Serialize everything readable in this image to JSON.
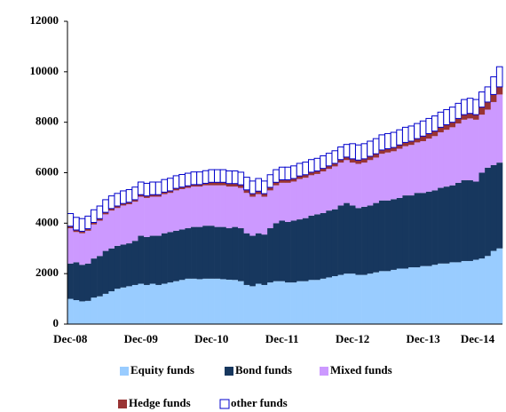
{
  "chart_data": {
    "type": "stacked_bar",
    "categories": [
      "Dec-08",
      null,
      null,
      null,
      null,
      null,
      null,
      null,
      null,
      null,
      null,
      null,
      "Dec-09",
      null,
      null,
      null,
      null,
      null,
      null,
      null,
      null,
      null,
      null,
      null,
      "Dec-10",
      null,
      null,
      null,
      null,
      null,
      null,
      null,
      null,
      null,
      null,
      null,
      "Dec-11",
      null,
      null,
      null,
      null,
      null,
      null,
      null,
      null,
      null,
      null,
      null,
      "Dec-12",
      null,
      null,
      null,
      null,
      null,
      null,
      null,
      null,
      null,
      null,
      null,
      "Dec-13",
      null,
      null,
      null,
      null,
      null,
      null,
      null,
      null,
      null,
      null,
      null,
      "Dec-14",
      null
    ],
    "series": [
      {
        "name": "Equity funds",
        "color": "#99ccff",
        "values": [
          1000,
          950,
          900,
          920,
          1050,
          1100,
          1200,
          1300,
          1400,
          1450,
          1500,
          1550,
          1600,
          1550,
          1600,
          1550,
          1600,
          1650,
          1700,
          1750,
          1800,
          1800,
          1780,
          1800,
          1800,
          1800,
          1780,
          1760,
          1750,
          1700,
          1550,
          1500,
          1600,
          1550,
          1650,
          1700,
          1700,
          1650,
          1650,
          1700,
          1700,
          1750,
          1750,
          1800,
          1850,
          1900,
          1950,
          2000,
          2000,
          1950,
          1950,
          2000,
          2050,
          2100,
          2100,
          2150,
          2200,
          2200,
          2250,
          2250,
          2300,
          2300,
          2350,
          2400,
          2400,
          2450,
          2450,
          2500,
          2500,
          2550,
          2600,
          2700,
          2900,
          3000
        ]
      },
      {
        "name": "Bond funds",
        "color": "#17375e",
        "values": [
          1400,
          1500,
          1450,
          1480,
          1550,
          1600,
          1700,
          1700,
          1700,
          1700,
          1700,
          1750,
          1900,
          1900,
          1900,
          1950,
          2000,
          2000,
          2000,
          2000,
          2000,
          2050,
          2070,
          2100,
          2100,
          2050,
          2070,
          2040,
          2100,
          2100,
          2050,
          2000,
          2000,
          2000,
          2150,
          2300,
          2400,
          2400,
          2450,
          2450,
          2500,
          2550,
          2600,
          2600,
          2650,
          2650,
          2750,
          2800,
          2700,
          2650,
          2700,
          2700,
          2750,
          2800,
          2800,
          2800,
          2800,
          2900,
          2850,
          2950,
          2900,
          2950,
          2950,
          3000,
          3050,
          3050,
          3150,
          3200,
          3200,
          3100,
          3400,
          3500,
          3400,
          3400
        ]
      },
      {
        "name": "Mixed funds",
        "color": "#cc99ff",
        "values": [
          1400,
          1200,
          1250,
          1300,
          1350,
          1400,
          1450,
          1500,
          1500,
          1550,
          1550,
          1550,
          1550,
          1550,
          1550,
          1550,
          1550,
          1550,
          1600,
          1600,
          1600,
          1600,
          1600,
          1600,
          1600,
          1650,
          1650,
          1650,
          1600,
          1600,
          1600,
          1550,
          1550,
          1500,
          1500,
          1500,
          1500,
          1550,
          1550,
          1600,
          1600,
          1600,
          1600,
          1650,
          1650,
          1700,
          1700,
          1700,
          1700,
          1750,
          1750,
          1800,
          1800,
          1850,
          1900,
          1900,
          1950,
          1950,
          2000,
          2000,
          2050,
          2100,
          2150,
          2200,
          2250,
          2300,
          2350,
          2400,
          2450,
          2450,
          2300,
          2300,
          2500,
          2700
        ]
      },
      {
        "name": "Hedge funds",
        "color": "#993333",
        "values": [
          80,
          80,
          80,
          80,
          80,
          80,
          80,
          80,
          80,
          80,
          80,
          80,
          80,
          80,
          80,
          80,
          80,
          80,
          80,
          80,
          80,
          80,
          80,
          80,
          120,
          120,
          120,
          120,
          120,
          120,
          120,
          120,
          120,
          120,
          120,
          120,
          120,
          120,
          120,
          120,
          120,
          120,
          120,
          120,
          120,
          120,
          120,
          120,
          150,
          150,
          150,
          150,
          150,
          150,
          150,
          150,
          150,
          150,
          150,
          150,
          200,
          200,
          200,
          200,
          200,
          200,
          200,
          200,
          200,
          200,
          300,
          300,
          300,
          300
        ]
      },
      {
        "name": "other funds",
        "color": "#ffffff",
        "stroke": "#0000cc",
        "values": [
          500,
          500,
          500,
          500,
          500,
          500,
          500,
          500,
          500,
          500,
          500,
          500,
          500,
          500,
          500,
          500,
          500,
          500,
          500,
          500,
          500,
          500,
          500,
          500,
          500,
          500,
          500,
          500,
          500,
          500,
          500,
          500,
          500,
          500,
          500,
          500,
          500,
          500,
          500,
          500,
          500,
          500,
          500,
          500,
          500,
          500,
          500,
          500,
          600,
          600,
          600,
          600,
          600,
          600,
          600,
          600,
          600,
          600,
          600,
          600,
          600,
          600,
          600,
          600,
          600,
          600,
          600,
          600,
          600,
          600,
          600,
          600,
          700,
          800
        ]
      }
    ],
    "ylim": [
      0,
      12000
    ],
    "yticks": [
      0,
      2000,
      4000,
      6000,
      8000,
      10000,
      12000
    ]
  }
}
